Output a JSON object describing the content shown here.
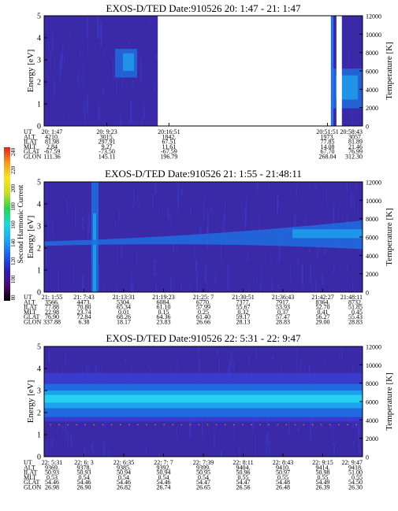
{
  "colors": {
    "background": "#3a2aa8",
    "band_low": "#3c3cd0",
    "band_mid": "#1f6fe0",
    "band_high": "#1fa8ee",
    "band_peak": "#28d6f2",
    "gap": "#ffffff",
    "dots": "#d07030"
  },
  "colorbar": {
    "label": "Second Harmonic Current",
    "tick_labels": [
      "80",
      "100",
      "120",
      "140",
      "160",
      "180",
      "200",
      "220",
      "240"
    ],
    "colors": [
      "#000000",
      "#4b0a6e",
      "#2a1fb5",
      "#1f5ff0",
      "#1fa9f0",
      "#1fd8d8",
      "#2ad34a",
      "#c8dc28",
      "#f5e628",
      "#f59a1e",
      "#e61e1e"
    ]
  },
  "chart_data": [
    {
      "type": "heatmap",
      "title": "EXOS-D/TED   Date:910526  20: 1:47 - 21: 1:47",
      "ylabel": "Energy [eV]",
      "ylabel_right": "Temperature [K]",
      "ylim": [
        0,
        5
      ],
      "ylim_right": [
        0,
        12000
      ],
      "yticks": [
        "0",
        "1",
        "2",
        "3",
        "4",
        "5"
      ],
      "yticks_right": [
        "0",
        "2000",
        "4000",
        "6000",
        "8000",
        "10000",
        "12000"
      ],
      "data_gaps": [
        [
          0.357,
          0.908
        ],
        [
          0.918,
          0.935
        ]
      ],
      "info_rows": [
        {
          "label": "UT",
          "values": [
            "20: 1:47",
            "20: 9:23",
            "20:16:51",
            "20:51:51",
            "20:58:43"
          ]
        },
        {
          "label": "ALT",
          "values": [
            "4210.",
            "3015.",
            "1842.",
            "1973.",
            "3057."
          ]
        },
        {
          "label": "ILAT",
          "values": [
            "81.98",
            "297.91",
            "67.51",
            "77.85",
            "81.89"
          ]
        },
        {
          "label": "MLT",
          "values": [
            "2.84",
            "9.27",
            "11.61",
            "14.08",
            "21.46"
          ]
        },
        {
          "label": "GLAT",
          "values": [
            "-67.59",
            "-73.50",
            "-67.59",
            "67.70",
            "76.99"
          ]
        },
        {
          "label": "GLON",
          "values": [
            "111.36",
            "145.11",
            "196.79",
            "268.04",
            "312.30"
          ]
        }
      ],
      "info_positions": [
        0.0,
        0.197,
        0.392,
        0.89,
        1.0
      ]
    },
    {
      "type": "heatmap",
      "title": "EXOS-D/TED   Date:910526  21: 1:55 - 21:48:11",
      "ylabel": "Energy [eV]",
      "ylabel_right": "Temperature [K]",
      "ylim": [
        0,
        5
      ],
      "ylim_right": [
        0,
        12000
      ],
      "yticks": [
        "0",
        "1",
        "2",
        "3",
        "4",
        "5"
      ],
      "yticks_right": [
        "0",
        "2000",
        "4000",
        "6000",
        "8000",
        "10000",
        "12000"
      ],
      "info_rows": [
        {
          "label": "UT",
          "values": [
            "21: 1:55",
            "21: 7:43",
            "21:13:31",
            "21:19:23",
            "21:25: 7",
            "21:30:51",
            "21:36:43",
            "21:42:27",
            "21:48:11"
          ]
        },
        {
          "label": "ALT",
          "values": [
            "3566.",
            "4473.",
            "5304.",
            "6084.",
            "6770.",
            "7377.",
            "7917.",
            "8364.",
            "8732."
          ]
        },
        {
          "label": "ILAT",
          "values": [
            "77.88",
            "70.80",
            "65.34",
            "61.10",
            "57.99",
            "55.67",
            "53.93",
            "52.70",
            "51.85"
          ]
        },
        {
          "label": "MLT",
          "values": [
            "22.98",
            "23.74",
            "0.01",
            "0.15",
            "0.25",
            "0.32",
            "0.37",
            "0.41",
            "0.45"
          ]
        },
        {
          "label": "GLAT",
          "values": [
            "76.90",
            "72.84",
            "68.26",
            "64.36",
            "61.40",
            "59.17",
            "57.47",
            "56.27",
            "55.43"
          ]
        },
        {
          "label": "GLON",
          "values": [
            "337.88",
            "6.38",
            "18.17",
            "23.83",
            "26.66",
            "28.13",
            "28.83",
            "29.00",
            "28.83"
          ]
        }
      ]
    },
    {
      "type": "heatmap",
      "title": "EXOS-D/TED   Date:910526  22: 5:31 - 22: 9:47",
      "ylabel": "Energy [eV]",
      "ylabel_right": "Temperature [K]",
      "ylim": [
        0,
        5
      ],
      "ylim_right": [
        0,
        12000
      ],
      "yticks": [
        "0",
        "1",
        "2",
        "3",
        "4",
        "5"
      ],
      "yticks_right": [
        "0",
        "2000",
        "4000",
        "6000",
        "8000",
        "10000",
        "12000"
      ],
      "info_rows": [
        {
          "label": "UT",
          "values": [
            "22: 5:31",
            "22: 6: 3",
            "22: 6:35",
            "22: 7: 7",
            "22: 7:39",
            "22: 8:11",
            "22: 8:43",
            "22: 9:15",
            "22: 9:47"
          ]
        },
        {
          "label": "ALT",
          "values": [
            "9369.",
            "9378.",
            "9385.",
            "9392.",
            "9399.",
            "9404.",
            "9410.",
            "9414.",
            "9418."
          ]
        },
        {
          "label": "ILAT",
          "values": [
            "50.93",
            "50.93",
            "50.94",
            "50.94",
            "50.95",
            "50.96",
            "50.97",
            "50.98",
            "51.00"
          ]
        },
        {
          "label": "MLT",
          "values": [
            "0.53",
            "0.54",
            "0.54",
            "0.54",
            "0.54",
            "0.55",
            "0.55",
            "0.55",
            "0.55"
          ]
        },
        {
          "label": "GLAT",
          "values": [
            "54.46",
            "54.46",
            "54.46",
            "54.46",
            "54.47",
            "54.47",
            "54.48",
            "54.49",
            "54.50"
          ]
        },
        {
          "label": "GLON",
          "values": [
            "26.98",
            "26.90",
            "26.82",
            "26.74",
            "26.65",
            "26.56",
            "26.48",
            "26.39",
            "26.30"
          ]
        }
      ]
    }
  ]
}
